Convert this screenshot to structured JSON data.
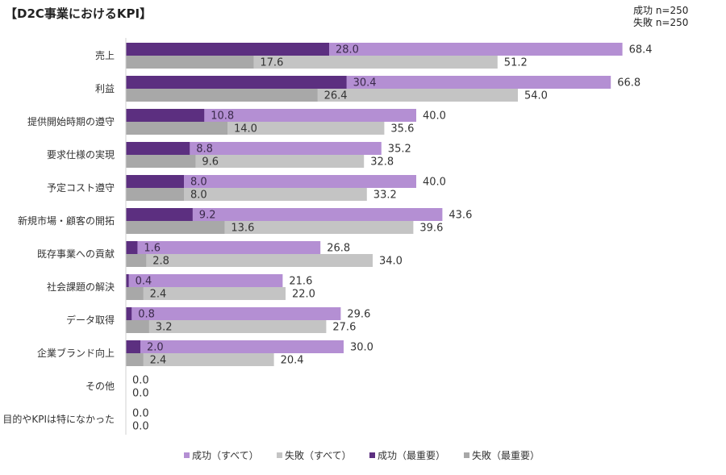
{
  "title": "【D2C事業におけるKPI】",
  "sample_note": [
    "成功 n=250",
    "失敗 n=250"
  ],
  "colors": {
    "success_all": "#b48fd3",
    "fail_all": "#c4c4c4",
    "success_top": "#5c2f80",
    "fail_top": "#a8a8a8"
  },
  "chart_data": {
    "type": "bar",
    "orientation": "horizontal",
    "title": "【D2C事業におけるKPI】",
    "xlim": [
      0,
      80
    ],
    "grid": false,
    "legend_position": "bottom",
    "categories": [
      "売上",
      "利益",
      "提供開始時期の遵守",
      "要求仕様の実現",
      "予定コスト遵守",
      "新規市場・顧客の開拓",
      "既存事業への貢献",
      "社会課題の解決",
      "データ取得",
      "企業ブランド向上",
      "その他",
      "目的やKPIは特になかった"
    ],
    "series": [
      {
        "name": "成功（すべて）",
        "values": [
          68.4,
          66.8,
          40.0,
          35.2,
          40.0,
          43.6,
          26.8,
          21.6,
          29.6,
          30.0,
          0.0,
          0.0
        ]
      },
      {
        "name": "失敗（すべて）",
        "values": [
          51.2,
          54.0,
          35.6,
          32.8,
          33.2,
          39.6,
          34.0,
          22.0,
          27.6,
          20.4,
          0.0,
          0.0
        ]
      },
      {
        "name": "成功（最重要）",
        "values": [
          28.0,
          30.4,
          10.8,
          8.8,
          8.0,
          9.2,
          1.6,
          0.4,
          0.8,
          2.0,
          null,
          null
        ]
      },
      {
        "name": "失敗（最重要）",
        "values": [
          17.6,
          26.4,
          14.0,
          9.6,
          8.0,
          13.6,
          2.8,
          2.4,
          3.2,
          2.4,
          null,
          null
        ]
      }
    ]
  }
}
